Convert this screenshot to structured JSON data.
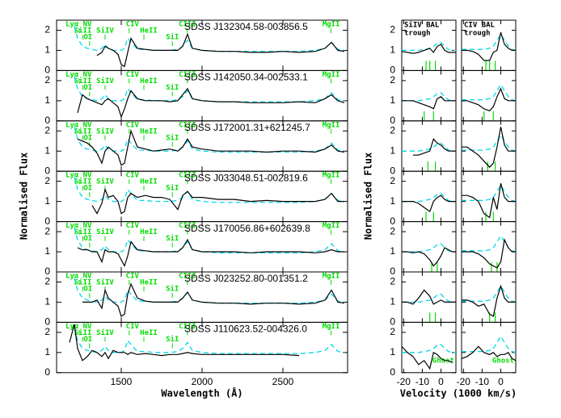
{
  "chart_data": [
    {
      "type": "line",
      "ylabel": "Normalised Flux",
      "xlabel": "Wavelength (Å)",
      "xlim": [
        1100,
        2900
      ],
      "xticks": [
        1500,
        2000,
        2500
      ],
      "ylim": [
        0,
        2.5
      ],
      "yticks": [
        0,
        1,
        2
      ],
      "spectrum_color": "#000000",
      "line_color": "#00dd00",
      "wavelength": [
        1180,
        1210,
        1230,
        1260,
        1290,
        1320,
        1350,
        1380,
        1400,
        1420,
        1450,
        1480,
        1500,
        1520,
        1540,
        1560,
        1600,
        1650,
        1700,
        1750,
        1800,
        1850,
        1880,
        1910,
        1940,
        2000,
        2100,
        2200,
        2300,
        2400,
        2500,
        2600,
        2700,
        2760,
        2800,
        2840,
        2880
      ],
      "composite": {
        "color": "#00d8e8",
        "values": [
          null,
          2.2,
          1.6,
          1.2,
          1.1,
          1.05,
          1.0,
          1.1,
          1.3,
          1.1,
          1.0,
          1.0,
          1.0,
          1.1,
          1.6,
          1.4,
          1.05,
          1.05,
          1.0,
          1.0,
          1.0,
          1.05,
          1.2,
          1.5,
          1.1,
          1.0,
          0.95,
          0.95,
          0.95,
          0.95,
          0.95,
          0.95,
          1.0,
          1.1,
          1.4,
          1.05,
          1.0
        ]
      },
      "lines": [
        {
          "label": "Lyα",
          "wavelength": 1216
        },
        {
          "label": "NV",
          "wavelength": 1240
        },
        {
          "label": "SiII",
          "wavelength": 1263
        },
        {
          "label": "OI",
          "wavelength": 1304
        },
        {
          "label": "SiIV",
          "wavelength": 1400
        },
        {
          "label": "CIV",
          "wavelength": 1549
        },
        {
          "label": "HeII",
          "wavelength": 1640
        },
        {
          "label": "CIII",
          "wavelength": 1909
        },
        {
          "label": "SiI",
          "wavelength": 1816
        },
        {
          "label": "MgII",
          "wavelength": 2798
        }
      ],
      "panels": [
        {
          "name": "SDSS J132304.58-003856.5",
          "values": [
            null,
            null,
            null,
            null,
            null,
            null,
            0.75,
            0.9,
            1.2,
            1.1,
            1.0,
            0.8,
            0.3,
            0.2,
            0.9,
            1.6,
            1.1,
            1.05,
            1.0,
            1.0,
            1.0,
            1.0,
            1.2,
            1.8,
            1.1,
            1.0,
            0.95,
            0.95,
            0.9,
            0.9,
            0.95,
            0.9,
            0.95,
            1.1,
            1.4,
            1.0,
            0.95
          ]
        },
        {
          "name": "SDSS J142050.34-002533.1",
          "values": [
            null,
            null,
            0.4,
            1.3,
            1.1,
            1.0,
            0.9,
            0.8,
            1.0,
            1.1,
            0.9,
            0.7,
            0.2,
            0.6,
            1.1,
            1.5,
            1.1,
            1.0,
            1.0,
            1.0,
            0.95,
            1.0,
            1.3,
            1.6,
            1.1,
            1.0,
            0.95,
            0.95,
            0.9,
            0.9,
            0.9,
            0.95,
            0.9,
            1.1,
            1.3,
            1.0,
            0.9
          ]
        },
        {
          "name": "SDSS J172001.31+621245.7",
          "values": [
            null,
            null,
            1.6,
            1.5,
            1.4,
            1.2,
            0.9,
            0.4,
            1.0,
            1.2,
            1.0,
            0.8,
            0.3,
            0.4,
            1.2,
            2.0,
            1.2,
            1.1,
            1.0,
            1.05,
            1.1,
            1.0,
            1.2,
            1.6,
            1.2,
            1.1,
            1.0,
            1.0,
            1.0,
            0.95,
            1.0,
            1.0,
            0.95,
            1.1,
            1.3,
            1.0,
            0.95
          ]
        },
        {
          "name": "SDSS J033048.51-002819.6",
          "values": [
            null,
            null,
            null,
            null,
            null,
            0.8,
            0.4,
            0.9,
            1.6,
            1.2,
            1.3,
            1.0,
            0.4,
            0.5,
            1.2,
            1.4,
            1.2,
            1.3,
            1.2,
            1.2,
            1.1,
            0.6,
            1.3,
            1.5,
            1.2,
            1.2,
            1.1,
            1.1,
            1.0,
            1.05,
            1.0,
            1.0,
            1.0,
            1.1,
            1.4,
            1.0,
            1.0
          ]
        },
        {
          "name": "SDSS J170056.86+602639.8",
          "values": [
            null,
            null,
            1.2,
            1.1,
            1.1,
            1.0,
            1.0,
            0.5,
            1.1,
            1.0,
            1.0,
            0.9,
            0.6,
            0.3,
            0.8,
            1.5,
            1.1,
            1.05,
            1.0,
            1.0,
            1.0,
            1.0,
            1.2,
            1.6,
            1.1,
            1.0,
            1.0,
            1.0,
            0.95,
            1.0,
            1.0,
            1.0,
            0.95,
            1.0,
            1.1,
            1.0,
            1.0
          ]
        },
        {
          "name": "SDSS J023252.80-001351.2",
          "values": [
            null,
            null,
            null,
            1.0,
            1.0,
            1.0,
            1.1,
            0.7,
            1.6,
            1.2,
            1.0,
            0.8,
            0.3,
            0.4,
            1.4,
            1.9,
            1.2,
            1.05,
            1.0,
            1.0,
            1.0,
            1.0,
            1.2,
            1.5,
            1.1,
            1.0,
            0.95,
            0.95,
            0.9,
            0.95,
            0.95,
            0.9,
            0.95,
            1.1,
            1.6,
            1.0,
            0.95
          ]
        },
        {
          "name": "SDSS J110623.52-004326.0",
          "values": [
            1.5,
            2.4,
            1.2,
            0.6,
            0.8,
            1.1,
            1.0,
            0.8,
            1.0,
            0.7,
            1.1,
            1.0,
            1.0,
            1.0,
            0.9,
            1.0,
            0.9,
            0.95,
            0.9,
            0.85,
            0.9,
            0.9,
            0.95,
            1.0,
            0.95,
            0.9,
            0.9,
            0.9,
            0.9,
            0.9,
            0.9,
            0.85,
            null,
            null,
            null,
            null,
            null
          ]
        }
      ]
    },
    {
      "type": "line",
      "ylabel": "Normalised Flux",
      "xlabel": "Velocity (1000 km/s)",
      "xlim": [
        -21,
        8
      ],
      "xticks": [
        -20,
        -10,
        0
      ],
      "ylim": [
        0,
        2.5
      ],
      "yticks": [
        0,
        1,
        2
      ],
      "spectrum_color": "#000000",
      "composite_color": "#00d8e8",
      "marker_color": "#00dd00",
      "velocity": [
        -21,
        -18,
        -15,
        -12,
        -9,
        -6,
        -4,
        -2,
        0,
        2,
        4,
        6,
        8
      ],
      "columns": [
        {
          "label": [
            "SiIV BAL",
            "trough"
          ],
          "composite": [
            1.0,
            1.0,
            1.0,
            1.0,
            1.05,
            1.1,
            1.2,
            1.35,
            1.4,
            1.2,
            1.05,
            1.0,
            1.0
          ]
        },
        {
          "label": [
            "CIV BAL",
            "trough"
          ],
          "composite": [
            1.05,
            1.05,
            1.05,
            1.05,
            1.05,
            1.1,
            1.2,
            1.5,
            1.8,
            1.5,
            1.2,
            1.05,
            1.0
          ]
        }
      ],
      "rows": [
        {
          "siiv": [
            0.95,
            0.9,
            0.85,
            0.9,
            1.0,
            1.1,
            0.9,
            1.2,
            1.3,
            1.0,
            0.9,
            0.9,
            0.9
          ],
          "civ": [
            1.0,
            1.0,
            0.95,
            0.8,
            0.5,
            0.5,
            0.9,
            1.0,
            1.9,
            1.3,
            1.1,
            1.0,
            1.0
          ],
          "markers": [
            -8,
            -6,
            -3
          ]
        },
        {
          "siiv": [
            1.0,
            1.0,
            1.0,
            0.9,
            0.8,
            0.7,
            0.6,
            1.1,
            1.2,
            1.0,
            1.0,
            1.0,
            1.0
          ],
          "civ": [
            1.0,
            1.0,
            0.9,
            0.8,
            0.6,
            0.5,
            0.7,
            1.2,
            1.6,
            1.1,
            1.0,
            1.0,
            1.0
          ],
          "markers": [
            -9,
            -4
          ]
        },
        {
          "siiv": [
            null,
            null,
            0.8,
            0.8,
            0.9,
            1.0,
            1.6,
            1.4,
            1.3,
            1.1,
            1.0,
            1.0,
            1.0
          ],
          "civ": [
            1.2,
            1.2,
            1.0,
            0.8,
            0.5,
            0.2,
            0.4,
            1.2,
            2.2,
            1.3,
            1.0,
            1.0,
            1.0
          ],
          "markers": [
            -7,
            -3
          ]
        },
        {
          "siiv": [
            1.0,
            1.0,
            1.0,
            0.9,
            0.7,
            0.5,
            1.0,
            1.2,
            1.3,
            1.1,
            1.0,
            1.0,
            1.0
          ],
          "civ": [
            1.3,
            1.3,
            1.2,
            1.0,
            0.4,
            0.2,
            1.2,
            0.6,
            1.9,
            1.2,
            1.0,
            1.0,
            1.0
          ],
          "markers": [
            -8,
            -4
          ]
        },
        {
          "siiv": [
            1.0,
            1.0,
            0.95,
            1.0,
            0.9,
            0.6,
            0.3,
            0.5,
            0.8,
            1.2,
            1.1,
            1.0,
            1.0
          ],
          "civ": [
            1.0,
            1.0,
            1.0,
            0.9,
            0.7,
            0.4,
            0.3,
            0.2,
            0.5,
            1.6,
            1.2,
            1.0,
            1.0
          ],
          "markers": [
            -5,
            -2
          ]
        },
        {
          "siiv": [
            1.0,
            1.0,
            0.9,
            1.2,
            1.6,
            1.3,
            0.9,
            1.0,
            1.1,
            1.0,
            1.0,
            1.0,
            1.0
          ],
          "civ": [
            1.1,
            1.1,
            1.0,
            0.8,
            0.9,
            0.4,
            0.3,
            1.2,
            1.8,
            1.2,
            1.0,
            1.0,
            1.0
          ],
          "markers": [
            -6,
            -3
          ]
        },
        {
          "siiv": [
            1.3,
            1.0,
            0.8,
            0.4,
            0.6,
            0.2,
            1.0,
            0.9,
            0.7,
            0.6,
            0.6,
            0.5,
            null
          ],
          "civ": [
            0.7,
            0.8,
            1.0,
            1.3,
            1.0,
            0.9,
            1.0,
            0.8,
            0.9,
            0.9,
            1.0,
            0.7,
            0.6
          ],
          "markers": []
        }
      ],
      "ghost_labels": [
        "Ghost",
        "Ghost"
      ]
    }
  ]
}
